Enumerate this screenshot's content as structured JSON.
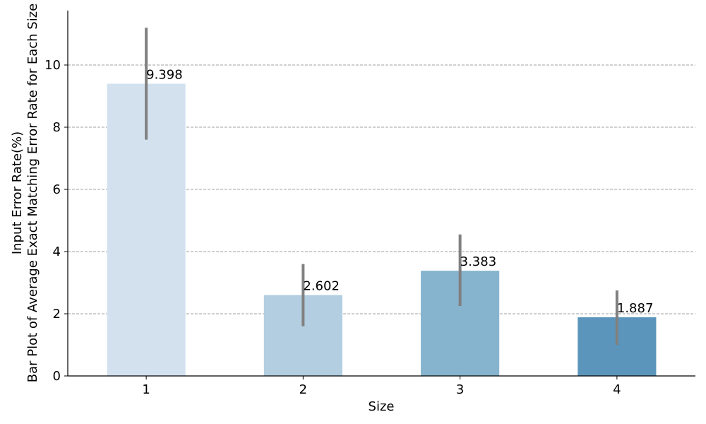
{
  "chart_data": {
    "type": "bar",
    "categories": [
      "1",
      "2",
      "3",
      "4"
    ],
    "values": [
      9.398,
      2.602,
      3.383,
      1.887
    ],
    "value_labels": [
      "9.398",
      "2.602",
      "3.383",
      "1.887"
    ],
    "error_low": [
      7.6,
      1.6,
      2.25,
      1.0
    ],
    "error_high": [
      11.2,
      3.6,
      4.55,
      2.75
    ],
    "bar_colors": [
      "#d3e1ef",
      "#b2cee0",
      "#86b3cd",
      "#5b95bb"
    ],
    "error_color": "#808080",
    "xlabel": "Size",
    "ylabel_lines": [
      "Bar Plot of Average Exact Matching Error Rate for Each Size",
      "Input Error Rate(%)"
    ],
    "yticks": [
      0,
      2,
      4,
      6,
      8,
      10
    ],
    "ylim": [
      0,
      11.75
    ],
    "grid": "y-dashed"
  }
}
